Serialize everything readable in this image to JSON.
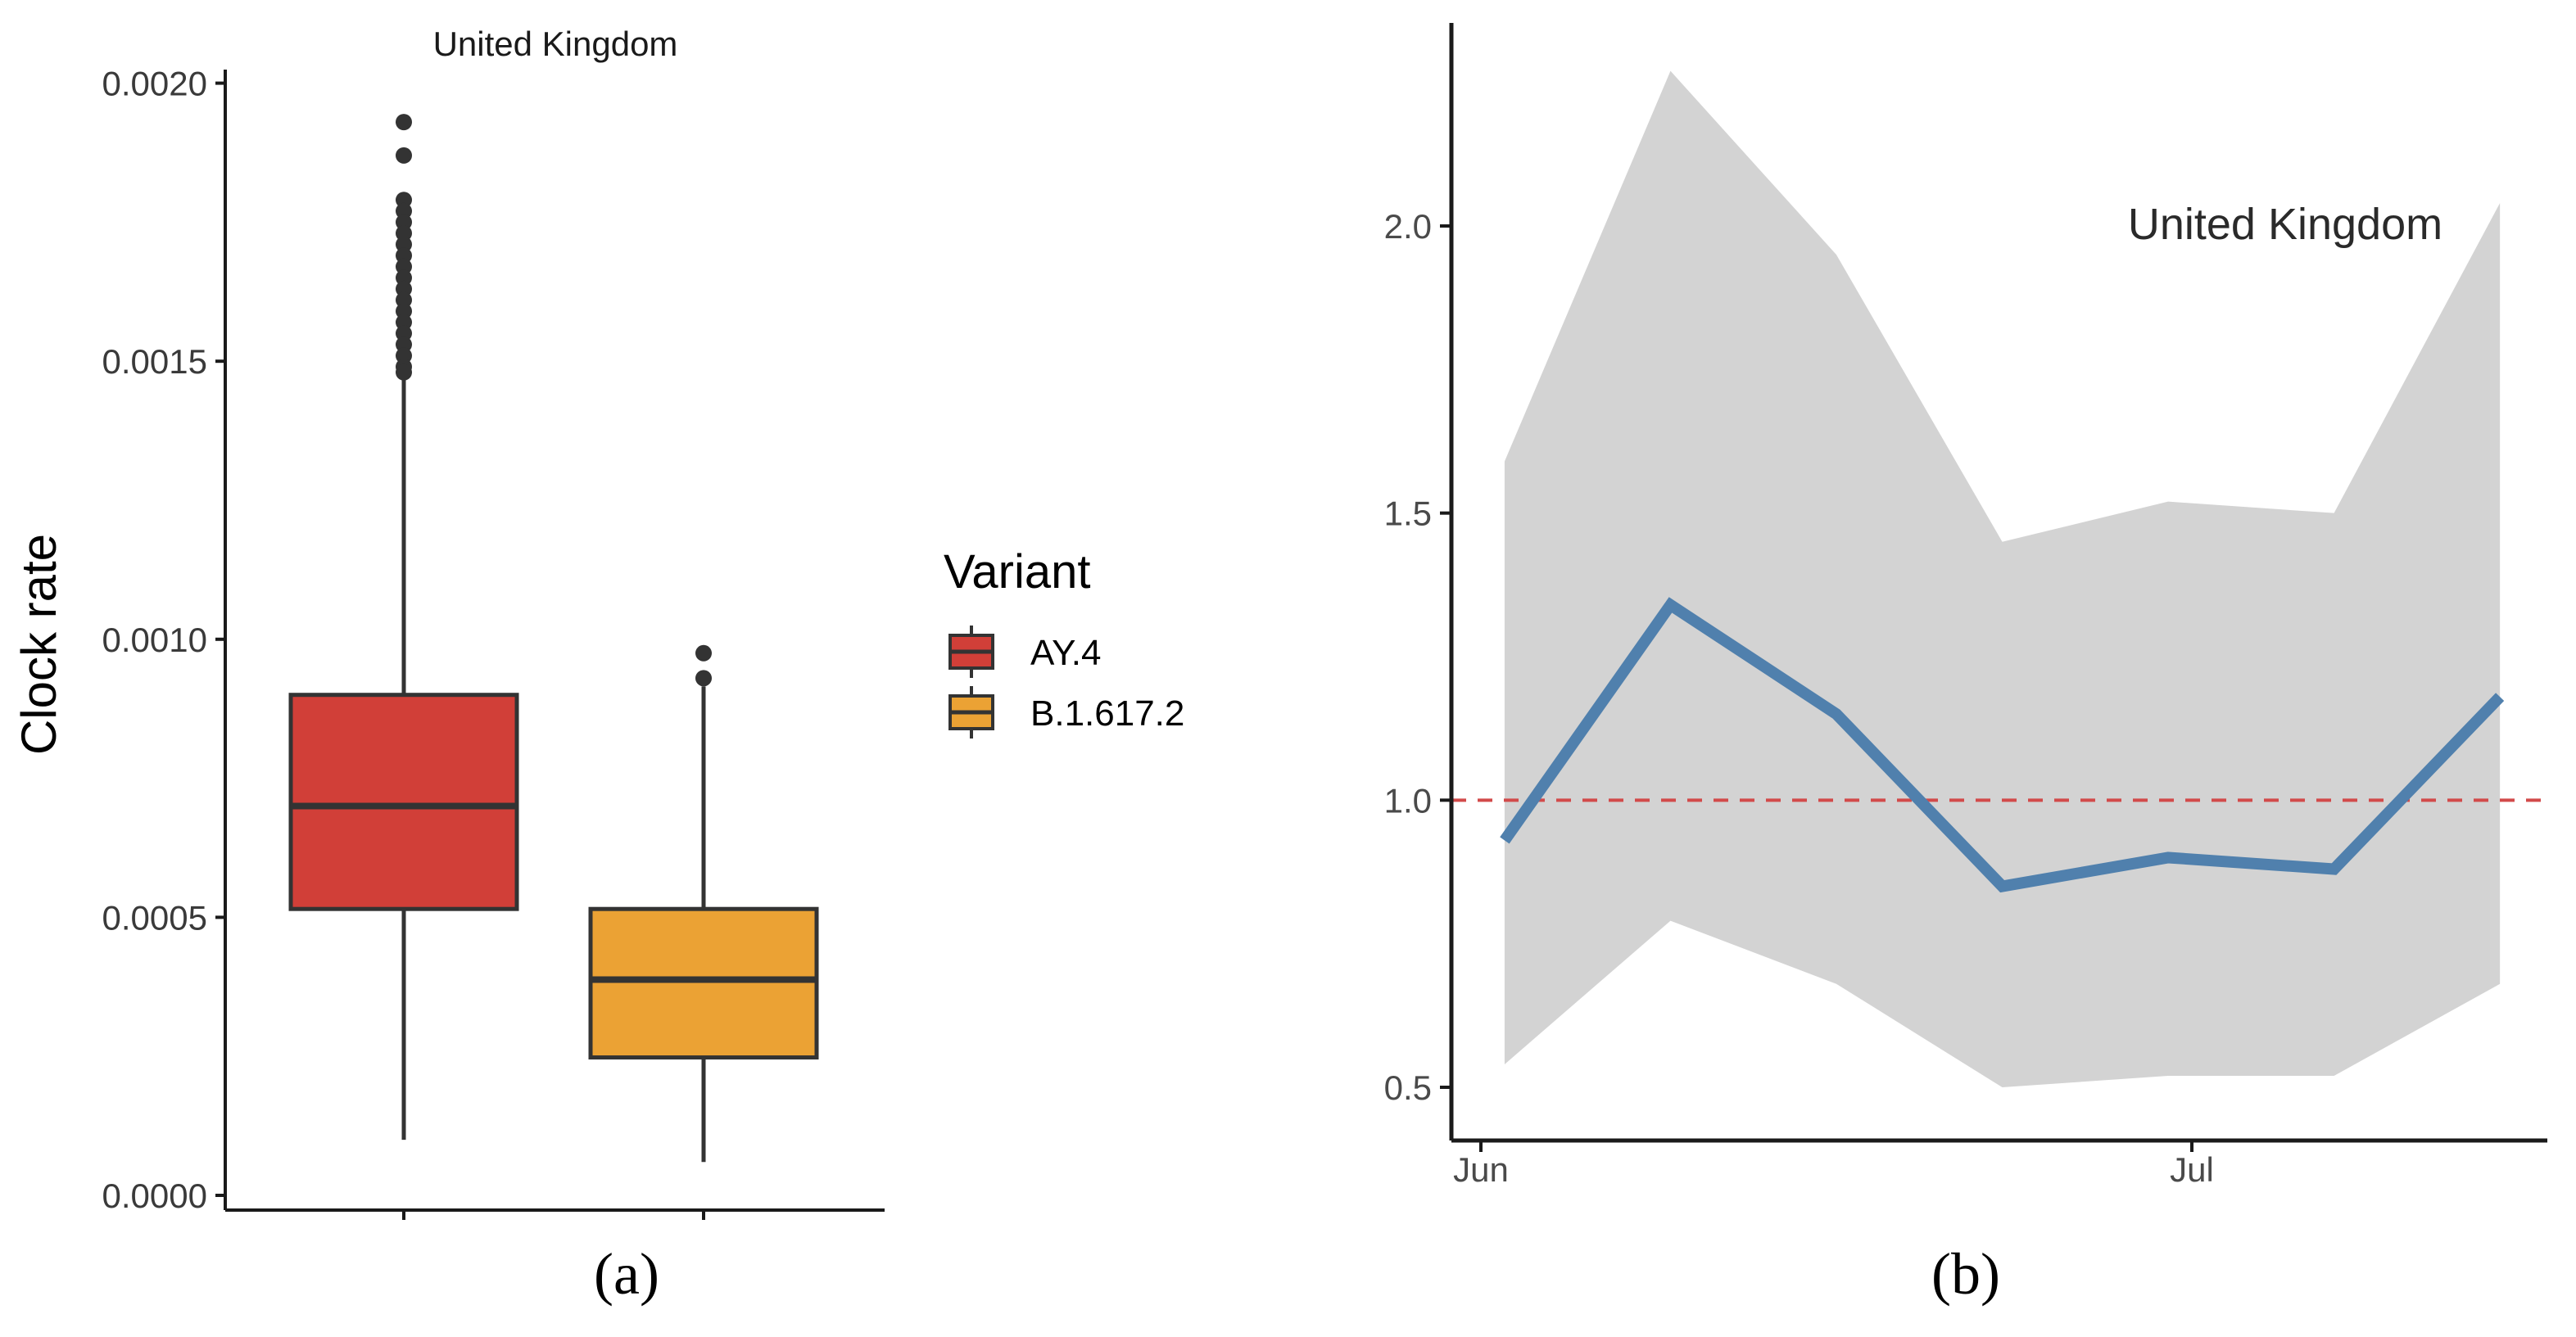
{
  "figure": {
    "panel_a_label": "(a)",
    "panel_b_label": "(b)"
  },
  "colors": {
    "ay4": "#d13f38",
    "b16172": "#eba234",
    "line": "#5080ad",
    "ribbon": "#d3d3d3",
    "reference": "#d24a4a",
    "axis": "#1a1a1a",
    "outline": "#333333"
  },
  "chart_data": [
    {
      "type": "boxplot",
      "title": "United Kingdom",
      "xlabel": "",
      "ylabel": "Clock rate",
      "ylim": [
        0.0,
        0.00202
      ],
      "y_ticks": [
        0.0,
        0.0005,
        0.001,
        0.0015,
        0.002
      ],
      "y_tick_labels": [
        "0.0000",
        "0.0005",
        "0.0010",
        "0.0015",
        "0.0020"
      ],
      "legend": {
        "title": "Variant",
        "entries": [
          "AY.4",
          "B.1.617.2"
        ]
      },
      "series": [
        {
          "name": "AY.4",
          "whisker_low": 0.0001,
          "q1": 0.000515,
          "median": 0.0007,
          "q3": 0.0009,
          "whisker_high": 0.00147,
          "outliers": [
            0.00193,
            0.00187,
            0.00179,
            0.00177,
            0.00175,
            0.00173,
            0.00171,
            0.00169,
            0.00167,
            0.00165,
            0.00163,
            0.00161,
            0.00159,
            0.00157,
            0.00155,
            0.00153,
            0.00151,
            0.00149,
            0.00148
          ]
        },
        {
          "name": "B.1.617.2",
          "whisker_low": 6e-05,
          "q1": 0.000248,
          "median": 0.000388,
          "q3": 0.000515,
          "whisker_high": 0.000915,
          "outliers": [
            0.00093,
            0.000975
          ]
        }
      ]
    },
    {
      "type": "line",
      "annotation": "United Kingdom",
      "xlabel": "",
      "ylabel": "",
      "x_tick_labels": [
        "Jun",
        "Jul"
      ],
      "y_ticks": [
        0.5,
        1.0,
        1.5,
        2.0
      ],
      "y_tick_labels": [
        "0.5",
        "1.0",
        "1.5",
        "2.0"
      ],
      "ylim": [
        0.43,
        2.34
      ],
      "x_day_range": [
        -1,
        45
      ],
      "x_tick_days": [
        0,
        30
      ],
      "reference_line": 1.0,
      "x_days": [
        1,
        8,
        15,
        22,
        29,
        36,
        43
      ],
      "values": [
        0.93,
        1.34,
        1.15,
        0.85,
        0.9,
        0.88,
        1.18
      ],
      "lower": [
        0.54,
        0.79,
        0.68,
        0.5,
        0.52,
        0.52,
        0.68
      ],
      "upper": [
        1.59,
        2.27,
        1.95,
        1.45,
        1.52,
        1.5,
        2.04
      ]
    }
  ]
}
